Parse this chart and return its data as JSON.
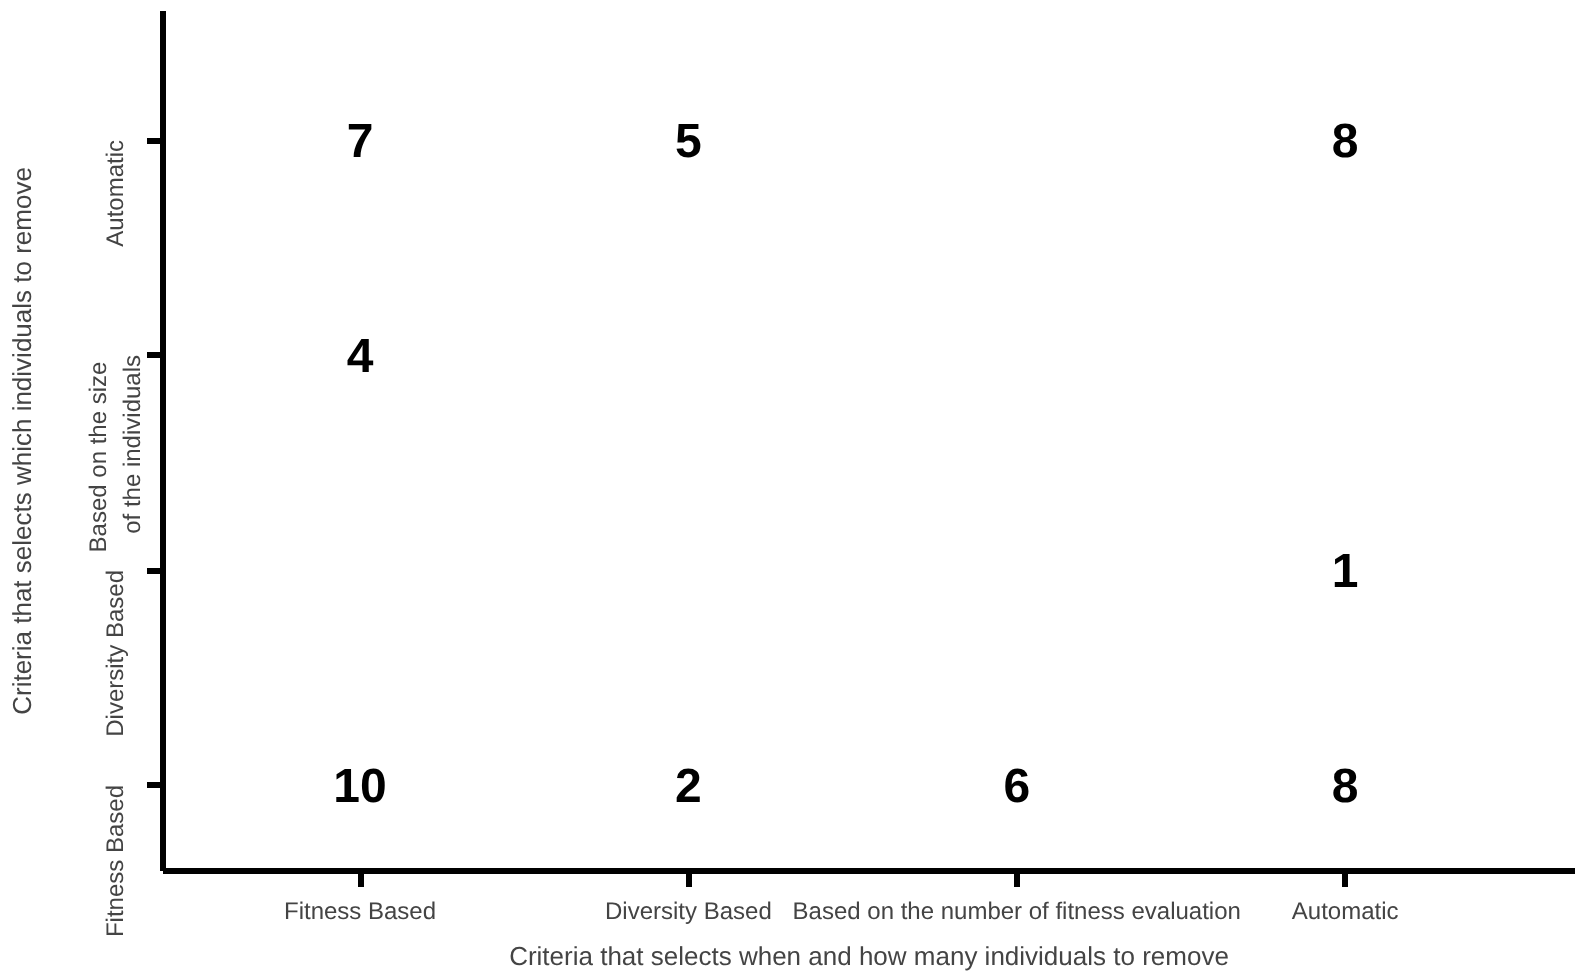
{
  "chart_data": {
    "type": "heatmap",
    "xlabel": "Criteria that selects when and how many individuals to remove",
    "ylabel": "Criteria that selects which individuals to remove",
    "categories": [
      "Fitness Based",
      "Diversity Based",
      "Based on the number of fitness evaluation",
      "Automatic"
    ],
    "y_categories": [
      "Automatic",
      "Based on  the size of the individuals",
      "Diversity Based",
      "Fitness Based"
    ],
    "cells": [
      [
        7,
        5,
        null,
        8
      ],
      [
        4,
        null,
        null,
        null
      ],
      [
        null,
        null,
        null,
        1
      ],
      [
        10,
        2,
        6,
        8
      ]
    ],
    "data_labels": true,
    "grid": false
  }
}
